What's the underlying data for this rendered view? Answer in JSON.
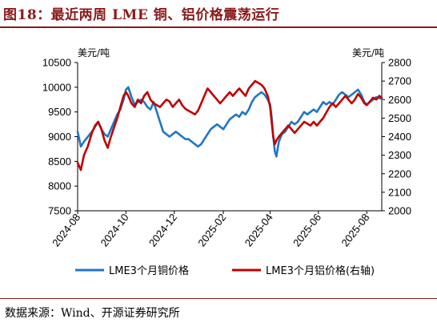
{
  "title": "图18：最近两周 LME 铜、铝价格震荡运行",
  "source": "数据来源：Wind、开源证券研究所",
  "chart_data": {
    "type": "line",
    "left_unit": "美元/吨",
    "right_unit": "美元/吨",
    "y_left": {
      "min": 7500,
      "max": 10500,
      "ticks": [
        "10500",
        "10000",
        "9500",
        "9000",
        "8500",
        "8000",
        "7500"
      ]
    },
    "y_right": {
      "min": 2000,
      "max": 2800,
      "ticks": [
        "2800",
        "2700",
        "2600",
        "2500",
        "2400",
        "2300",
        "2200",
        "2100",
        "2000"
      ]
    },
    "x_range": [
      "2024-08-01",
      "2025-08-20"
    ],
    "x_ticks": [
      {
        "date": "2024-08-01",
        "label": "2024-08"
      },
      {
        "date": "2024-10-01",
        "label": "2024-10"
      },
      {
        "date": "2024-12-01",
        "label": "2024-12"
      },
      {
        "date": "2025-02-01",
        "label": "2025-02"
      },
      {
        "date": "2025-04-01",
        "label": "2025-04"
      },
      {
        "date": "2025-06-01",
        "label": "2025-06"
      },
      {
        "date": "2025-08-01",
        "label": "2025-08"
      }
    ],
    "series": [
      {
        "name": "LME3个月铜价格",
        "axis": "left",
        "color": "#1f77c4",
        "points": [
          [
            "2024-08-01",
            9100
          ],
          [
            "2024-08-05",
            8800
          ],
          [
            "2024-08-09",
            8900
          ],
          [
            "2024-08-14",
            9000
          ],
          [
            "2024-08-19",
            9100
          ],
          [
            "2024-08-23",
            9200
          ],
          [
            "2024-08-27",
            9300
          ],
          [
            "2024-08-31",
            9150
          ],
          [
            "2024-09-04",
            9050
          ],
          [
            "2024-09-08",
            9000
          ],
          [
            "2024-09-12",
            9150
          ],
          [
            "2024-09-16",
            9300
          ],
          [
            "2024-09-20",
            9450
          ],
          [
            "2024-09-24",
            9550
          ],
          [
            "2024-09-28",
            9750
          ],
          [
            "2024-10-01",
            9950
          ],
          [
            "2024-10-04",
            10000
          ],
          [
            "2024-10-08",
            9800
          ],
          [
            "2024-10-12",
            9650
          ],
          [
            "2024-10-16",
            9700
          ],
          [
            "2024-10-20",
            9750
          ],
          [
            "2024-10-24",
            9700
          ],
          [
            "2024-10-28",
            9600
          ],
          [
            "2024-11-01",
            9550
          ],
          [
            "2024-11-05",
            9700
          ],
          [
            "2024-11-09",
            9500
          ],
          [
            "2024-11-13",
            9300
          ],
          [
            "2024-11-17",
            9100
          ],
          [
            "2024-11-21",
            9050
          ],
          [
            "2024-11-25",
            9000
          ],
          [
            "2024-11-29",
            9050
          ],
          [
            "2024-12-03",
            9100
          ],
          [
            "2024-12-07",
            9050
          ],
          [
            "2024-12-11",
            9000
          ],
          [
            "2024-12-15",
            8950
          ],
          [
            "2024-12-19",
            8950
          ],
          [
            "2024-12-23",
            8900
          ],
          [
            "2024-12-27",
            8850
          ],
          [
            "2024-12-31",
            8800
          ],
          [
            "2025-01-04",
            8850
          ],
          [
            "2025-01-08",
            8950
          ],
          [
            "2025-01-12",
            9050
          ],
          [
            "2025-01-16",
            9150
          ],
          [
            "2025-01-20",
            9200
          ],
          [
            "2025-01-24",
            9250
          ],
          [
            "2025-01-28",
            9200
          ],
          [
            "2025-02-01",
            9150
          ],
          [
            "2025-02-05",
            9250
          ],
          [
            "2025-02-09",
            9350
          ],
          [
            "2025-02-13",
            9400
          ],
          [
            "2025-02-17",
            9450
          ],
          [
            "2025-02-21",
            9400
          ],
          [
            "2025-02-25",
            9500
          ],
          [
            "2025-03-01",
            9450
          ],
          [
            "2025-03-05",
            9550
          ],
          [
            "2025-03-09",
            9700
          ],
          [
            "2025-03-13",
            9800
          ],
          [
            "2025-03-17",
            9850
          ],
          [
            "2025-03-21",
            9900
          ],
          [
            "2025-03-25",
            9850
          ],
          [
            "2025-03-29",
            9750
          ],
          [
            "2025-04-01",
            9650
          ],
          [
            "2025-04-03",
            9400
          ],
          [
            "2025-04-05",
            9000
          ],
          [
            "2025-04-07",
            8700
          ],
          [
            "2025-04-09",
            8600
          ],
          [
            "2025-04-12",
            8900
          ],
          [
            "2025-04-16",
            9050
          ],
          [
            "2025-04-20",
            9100
          ],
          [
            "2025-04-24",
            9200
          ],
          [
            "2025-04-28",
            9300
          ],
          [
            "2025-05-02",
            9250
          ],
          [
            "2025-05-06",
            9300
          ],
          [
            "2025-05-10",
            9400
          ],
          [
            "2025-05-14",
            9500
          ],
          [
            "2025-05-18",
            9450
          ],
          [
            "2025-05-22",
            9500
          ],
          [
            "2025-05-26",
            9550
          ],
          [
            "2025-05-30",
            9500
          ],
          [
            "2025-06-03",
            9600
          ],
          [
            "2025-06-07",
            9700
          ],
          [
            "2025-06-11",
            9650
          ],
          [
            "2025-06-15",
            9700
          ],
          [
            "2025-06-19",
            9650
          ],
          [
            "2025-06-23",
            9750
          ],
          [
            "2025-06-27",
            9850
          ],
          [
            "2025-07-01",
            9900
          ],
          [
            "2025-07-05",
            9850
          ],
          [
            "2025-07-09",
            9800
          ],
          [
            "2025-07-13",
            9850
          ],
          [
            "2025-07-17",
            9900
          ],
          [
            "2025-07-21",
            9950
          ],
          [
            "2025-07-25",
            9850
          ],
          [
            "2025-07-29",
            9700
          ],
          [
            "2025-08-01",
            9650
          ],
          [
            "2025-08-05",
            9700
          ],
          [
            "2025-08-09",
            9750
          ],
          [
            "2025-08-13",
            9800
          ],
          [
            "2025-08-17",
            9780
          ],
          [
            "2025-08-20",
            9760
          ]
        ]
      },
      {
        "name": "LME3个月铝价格(右轴)",
        "axis": "right",
        "color": "#c00000",
        "points": [
          [
            "2024-08-01",
            2260
          ],
          [
            "2024-08-05",
            2220
          ],
          [
            "2024-08-09",
            2300
          ],
          [
            "2024-08-14",
            2350
          ],
          [
            "2024-08-19",
            2420
          ],
          [
            "2024-08-23",
            2460
          ],
          [
            "2024-08-27",
            2480
          ],
          [
            "2024-08-31",
            2440
          ],
          [
            "2024-09-04",
            2380
          ],
          [
            "2024-09-08",
            2340
          ],
          [
            "2024-09-12",
            2400
          ],
          [
            "2024-09-16",
            2450
          ],
          [
            "2024-09-20",
            2500
          ],
          [
            "2024-09-24",
            2560
          ],
          [
            "2024-09-28",
            2620
          ],
          [
            "2024-10-01",
            2640
          ],
          [
            "2024-10-04",
            2620
          ],
          [
            "2024-10-08",
            2580
          ],
          [
            "2024-10-12",
            2560
          ],
          [
            "2024-10-16",
            2600
          ],
          [
            "2024-10-20",
            2580
          ],
          [
            "2024-10-24",
            2620
          ],
          [
            "2024-10-28",
            2640
          ],
          [
            "2024-11-01",
            2600
          ],
          [
            "2024-11-05",
            2580
          ],
          [
            "2024-11-09",
            2570
          ],
          [
            "2024-11-13",
            2560
          ],
          [
            "2024-11-17",
            2580
          ],
          [
            "2024-11-21",
            2600
          ],
          [
            "2024-11-25",
            2590
          ],
          [
            "2024-11-29",
            2560
          ],
          [
            "2024-12-03",
            2580
          ],
          [
            "2024-12-07",
            2600
          ],
          [
            "2024-12-11",
            2570
          ],
          [
            "2024-12-15",
            2550
          ],
          [
            "2024-12-19",
            2540
          ],
          [
            "2024-12-23",
            2530
          ],
          [
            "2024-12-27",
            2520
          ],
          [
            "2024-12-31",
            2540
          ],
          [
            "2025-01-04",
            2580
          ],
          [
            "2025-01-08",
            2620
          ],
          [
            "2025-01-12",
            2660
          ],
          [
            "2025-01-16",
            2640
          ],
          [
            "2025-01-20",
            2620
          ],
          [
            "2025-01-24",
            2600
          ],
          [
            "2025-01-28",
            2580
          ],
          [
            "2025-02-01",
            2600
          ],
          [
            "2025-02-05",
            2620
          ],
          [
            "2025-02-09",
            2640
          ],
          [
            "2025-02-13",
            2620
          ],
          [
            "2025-02-17",
            2640
          ],
          [
            "2025-02-21",
            2660
          ],
          [
            "2025-02-25",
            2640
          ],
          [
            "2025-03-01",
            2620
          ],
          [
            "2025-03-05",
            2660
          ],
          [
            "2025-03-09",
            2680
          ],
          [
            "2025-03-13",
            2700
          ],
          [
            "2025-03-17",
            2690
          ],
          [
            "2025-03-21",
            2680
          ],
          [
            "2025-03-25",
            2660
          ],
          [
            "2025-03-29",
            2620
          ],
          [
            "2025-04-01",
            2560
          ],
          [
            "2025-04-03",
            2480
          ],
          [
            "2025-04-05",
            2400
          ],
          [
            "2025-04-07",
            2360
          ],
          [
            "2025-04-09",
            2380
          ],
          [
            "2025-04-12",
            2400
          ],
          [
            "2025-04-16",
            2420
          ],
          [
            "2025-04-20",
            2440
          ],
          [
            "2025-04-24",
            2460
          ],
          [
            "2025-04-28",
            2440
          ],
          [
            "2025-05-02",
            2420
          ],
          [
            "2025-05-06",
            2440
          ],
          [
            "2025-05-10",
            2460
          ],
          [
            "2025-05-14",
            2480
          ],
          [
            "2025-05-18",
            2470
          ],
          [
            "2025-05-22",
            2460
          ],
          [
            "2025-05-26",
            2480
          ],
          [
            "2025-05-30",
            2460
          ],
          [
            "2025-06-03",
            2480
          ],
          [
            "2025-06-07",
            2500
          ],
          [
            "2025-06-11",
            2530
          ],
          [
            "2025-06-15",
            2560
          ],
          [
            "2025-06-19",
            2580
          ],
          [
            "2025-06-23",
            2560
          ],
          [
            "2025-06-27",
            2580
          ],
          [
            "2025-07-01",
            2600
          ],
          [
            "2025-07-05",
            2620
          ],
          [
            "2025-07-09",
            2600
          ],
          [
            "2025-07-13",
            2580
          ],
          [
            "2025-07-17",
            2600
          ],
          [
            "2025-07-21",
            2630
          ],
          [
            "2025-07-25",
            2610
          ],
          [
            "2025-07-29",
            2580
          ],
          [
            "2025-08-01",
            2570
          ],
          [
            "2025-08-05",
            2590
          ],
          [
            "2025-08-09",
            2610
          ],
          [
            "2025-08-13",
            2600
          ],
          [
            "2025-08-17",
            2620
          ],
          [
            "2025-08-20",
            2610
          ]
        ]
      }
    ]
  }
}
